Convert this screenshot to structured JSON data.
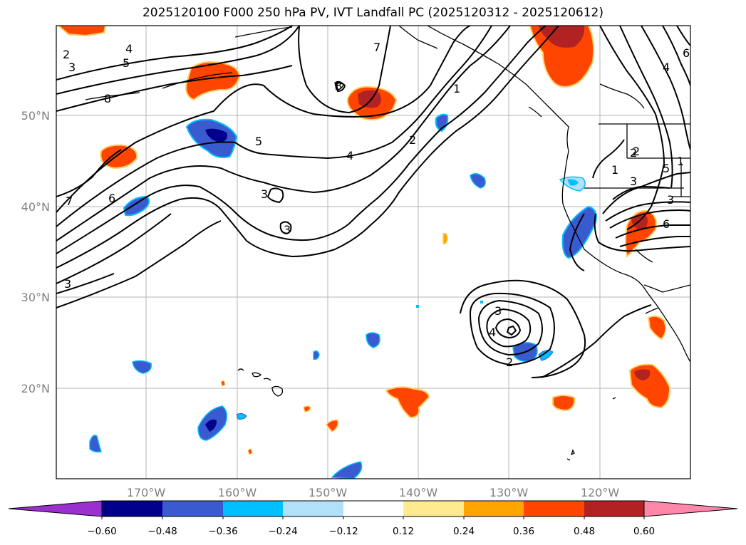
{
  "title": "2025120100 F000 250 hPa PV, IVT Landfall PC (2025120312 - 2025120612)",
  "map": {
    "lat_labels": [
      "50°N",
      "40°N",
      "30°N",
      "20°N"
    ],
    "lon_labels": [
      "170°W",
      "160°W",
      "150°W",
      "140°W",
      "130°W",
      "120°W"
    ]
  },
  "colorbar": {
    "ticks": [
      "−0.60",
      "−0.48",
      "−0.36",
      "−0.24",
      "−0.12",
      "0.12",
      "0.24",
      "0.36",
      "0.48",
      "0.60"
    ],
    "colors": {
      "under": "#9b30d0",
      "bins": [
        "#00008b",
        "#3a5bcf",
        "#00bfff",
        "#b0e0fa",
        "#ffffff",
        "#ffea8f",
        "#ffa500",
        "#ff4500",
        "#b22222"
      ],
      "over": "#ff88aa"
    }
  },
  "contour_labels": [
    "2",
    "3",
    "4",
    "5",
    "7",
    "8",
    "5",
    "4",
    "2",
    "1",
    "2",
    "3",
    "6",
    "7",
    "3",
    "3",
    "3",
    "2",
    "4",
    "3",
    "6",
    "5",
    "1",
    "2",
    "3",
    "1",
    "4",
    "6",
    "8"
  ]
}
